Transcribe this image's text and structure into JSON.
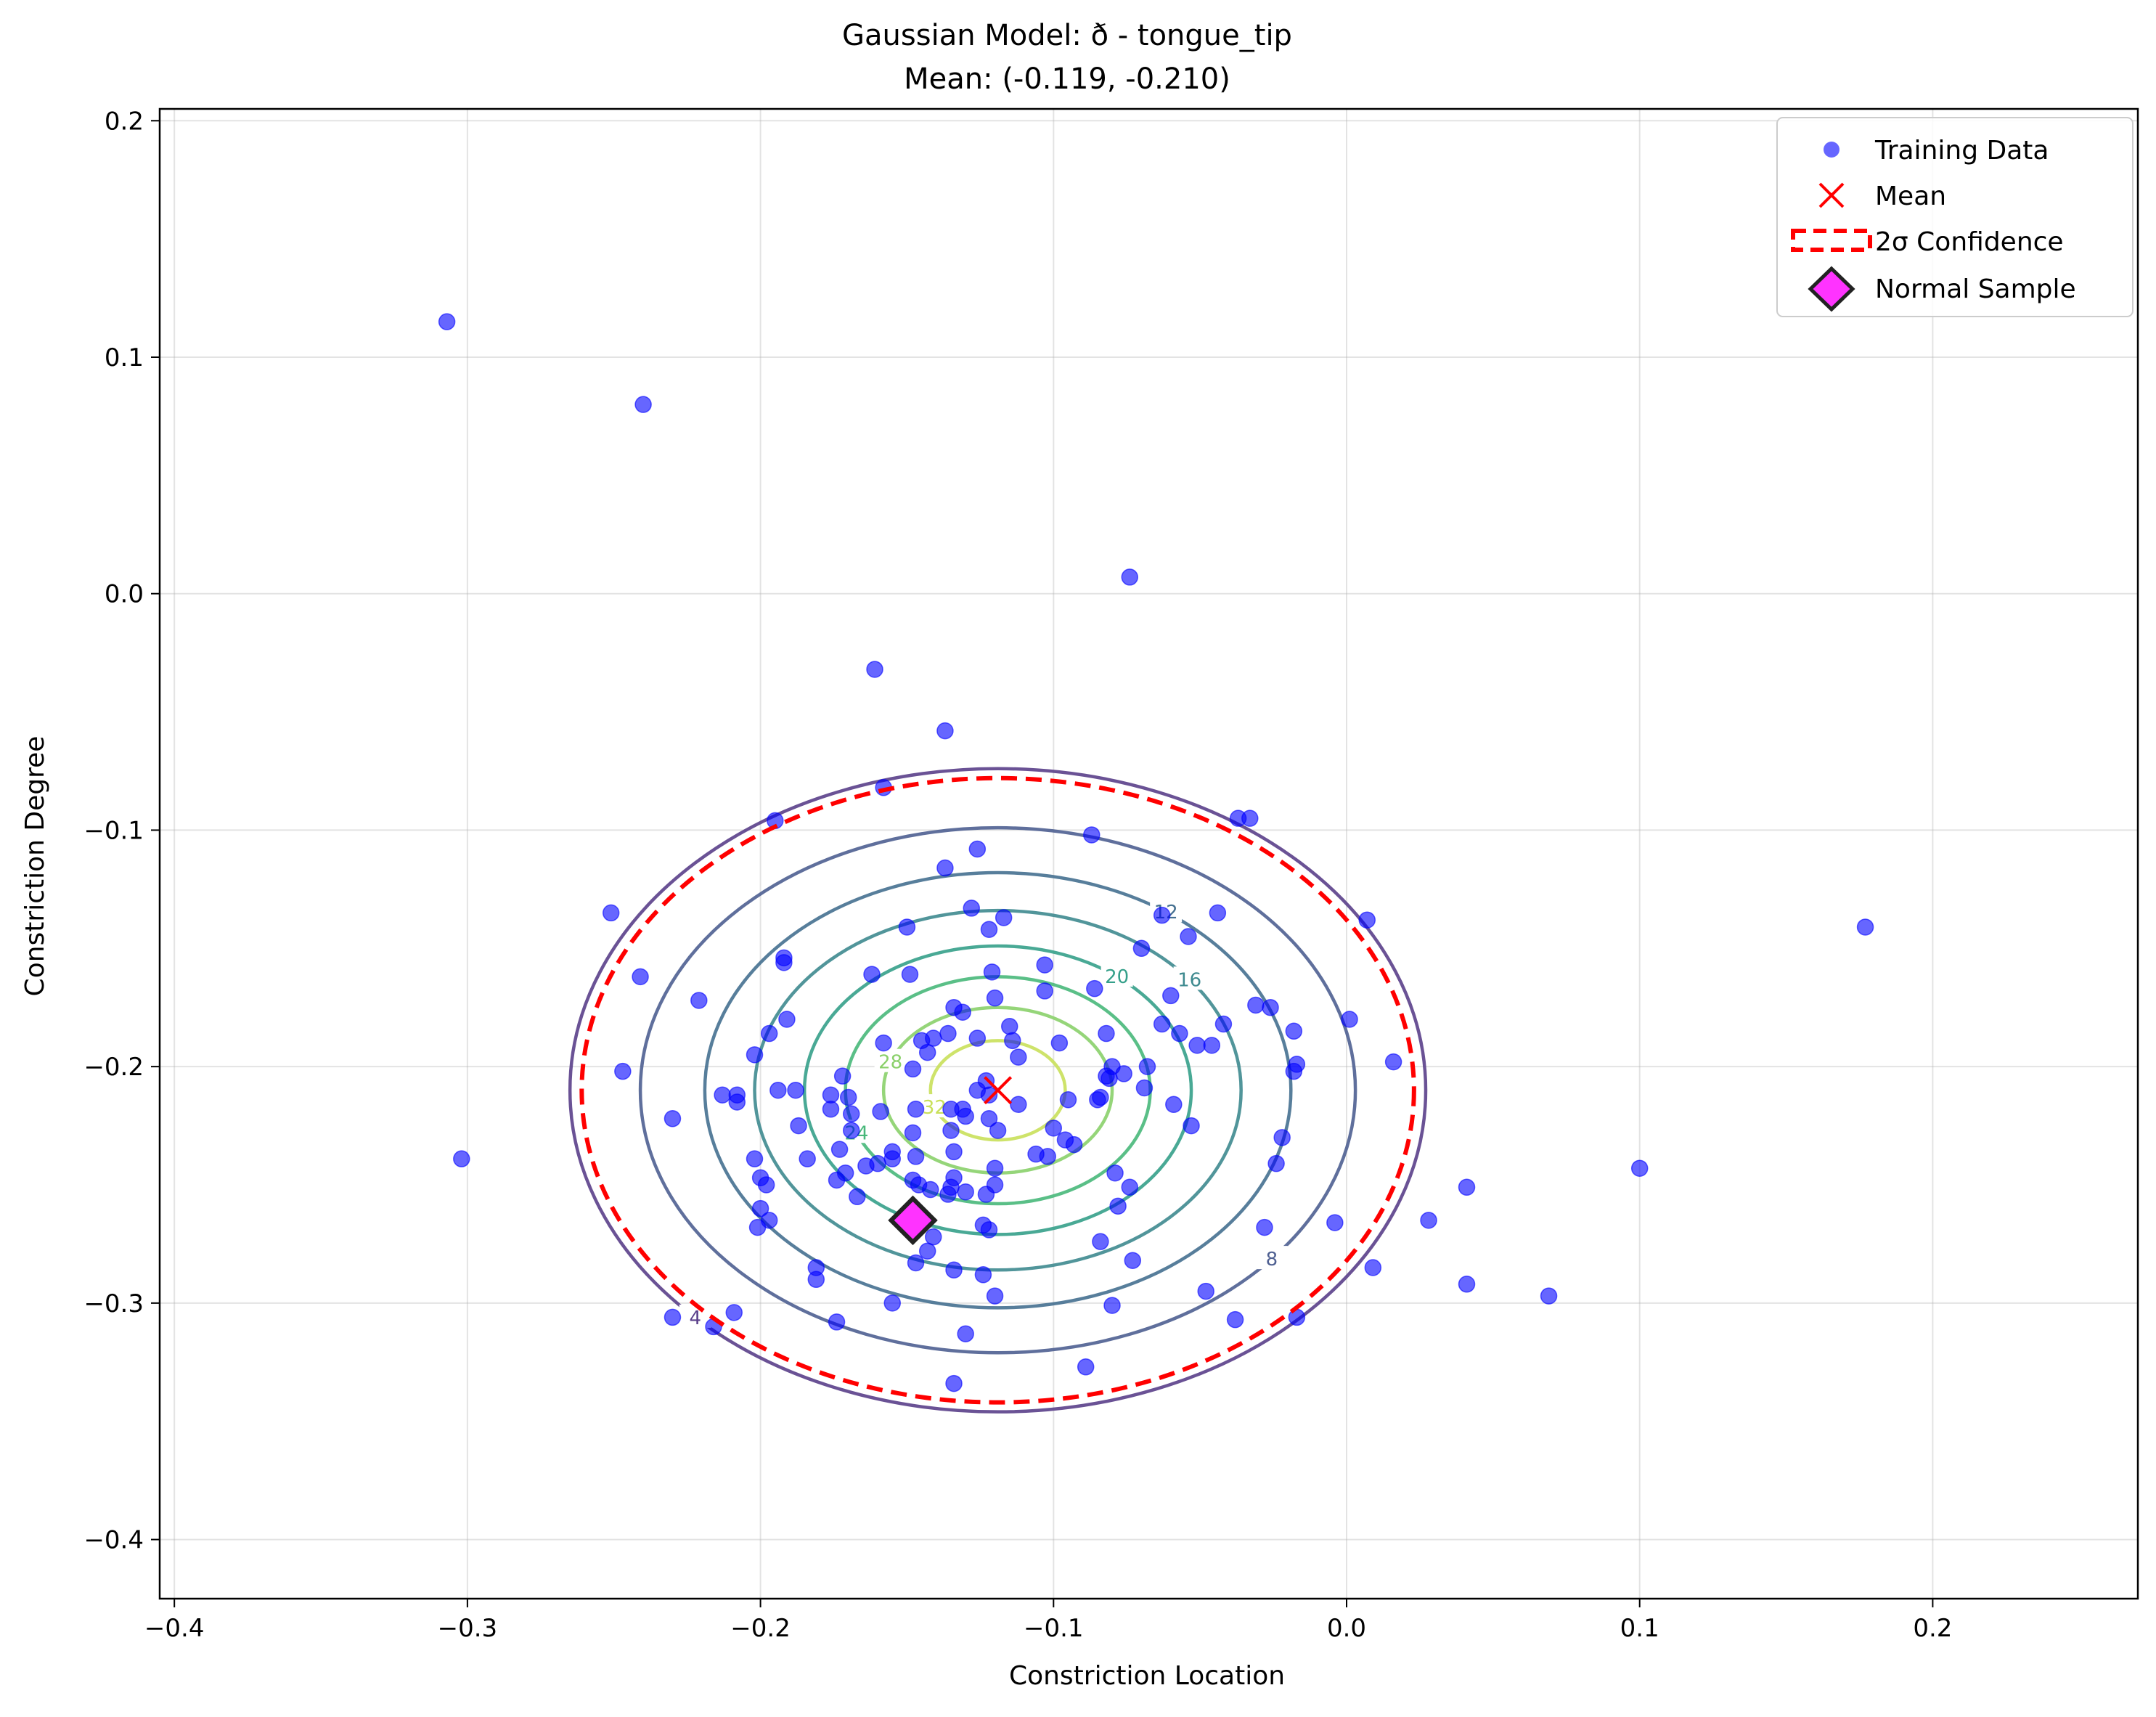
{
  "chart_data": {
    "type": "scatter",
    "title": "Gaussian Model: ð - tongue_tip",
    "subtitle": "Mean: (-0.119, -0.210)",
    "xlabel": "Constriction Location",
    "ylabel": "Constriction Degree",
    "xlim": [
      -0.405,
      0.27
    ],
    "ylim": [
      -0.425,
      0.205
    ],
    "grid": true,
    "legend_position": "top-right",
    "x_ticks": [
      {
        "value": -0.4,
        "label": "−0.4"
      },
      {
        "value": -0.3,
        "label": "−0.3"
      },
      {
        "value": -0.2,
        "label": "−0.2"
      },
      {
        "value": -0.1,
        "label": "−0.1"
      },
      {
        "value": 0.0,
        "label": "0.0"
      },
      {
        "value": 0.1,
        "label": "0.1"
      },
      {
        "value": 0.2,
        "label": "0.2"
      }
    ],
    "y_ticks": [
      {
        "value": 0.2,
        "label": "0.2"
      },
      {
        "value": 0.1,
        "label": "0.1"
      },
      {
        "value": 0.0,
        "label": "0.0"
      },
      {
        "value": -0.1,
        "label": "−0.1"
      },
      {
        "value": -0.2,
        "label": "−0.2"
      },
      {
        "value": -0.3,
        "label": "−0.3"
      },
      {
        "value": -0.4,
        "label": "−0.4"
      }
    ],
    "colors": {
      "training": "#0000ff",
      "mean": "#ff0000",
      "confidence": "#ff0000",
      "sample_fill": "#ff33ff",
      "sample_edge": "#222222"
    },
    "legend": [
      {
        "key": "training",
        "label": "Training Data"
      },
      {
        "key": "mean",
        "label": "Mean"
      },
      {
        "key": "confidence",
        "label": "2σ Confidence"
      },
      {
        "key": "sample",
        "label": "Normal Sample"
      }
    ],
    "mean": [
      -0.119,
      -0.21
    ],
    "normal_sample": [
      -0.148,
      -0.265
    ],
    "confidence_ellipse": {
      "center": [
        -0.119,
        -0.21
      ],
      "half_width_x": 0.142,
      "half_height_y": 0.132
    },
    "contours": [
      {
        "level": 4,
        "label": "4",
        "rx": 0.146,
        "ry": 0.136,
        "color": "#5a3f8a"
      },
      {
        "level": 8,
        "label": "8",
        "rx": 0.122,
        "ry": 0.111,
        "color": "#4e5f91"
      },
      {
        "level": 12,
        "label": "12",
        "rx": 0.1,
        "ry": 0.092,
        "color": "#457090"
      },
      {
        "level": 16,
        "label": "16",
        "rx": 0.083,
        "ry": 0.076,
        "color": "#3e8a8f"
      },
      {
        "level": 20,
        "label": "20",
        "rx": 0.066,
        "ry": 0.061,
        "color": "#35a08a"
      },
      {
        "level": 24,
        "label": "24",
        "rx": 0.052,
        "ry": 0.048,
        "color": "#48b87a"
      },
      {
        "level": 28,
        "label": "28",
        "rx": 0.039,
        "ry": 0.035,
        "color": "#8ad06a"
      },
      {
        "level": 32,
        "label": "32",
        "rx": 0.023,
        "ry": 0.021,
        "color": "#c9e05a"
      }
    ],
    "training_data": [
      [
        -0.307,
        0.115
      ],
      [
        -0.24,
        0.08
      ],
      [
        -0.074,
        0.007
      ],
      [
        -0.161,
        -0.032
      ],
      [
        -0.137,
        -0.058
      ],
      [
        -0.158,
        -0.082
      ],
      [
        -0.195,
        -0.096
      ],
      [
        -0.037,
        -0.095
      ],
      [
        -0.033,
        -0.095
      ],
      [
        -0.087,
        -0.102
      ],
      [
        -0.126,
        -0.108
      ],
      [
        -0.137,
        -0.116
      ],
      [
        -0.251,
        -0.135
      ],
      [
        -0.063,
        -0.136
      ],
      [
        -0.044,
        -0.135
      ],
      [
        -0.128,
        -0.133
      ],
      [
        -0.117,
        -0.137
      ],
      [
        0.007,
        -0.138
      ],
      [
        0.177,
        -0.141
      ],
      [
        -0.15,
        -0.141
      ],
      [
        -0.054,
        -0.145
      ],
      [
        -0.122,
        -0.142
      ],
      [
        -0.07,
        -0.15
      ],
      [
        -0.192,
        -0.154
      ],
      [
        -0.192,
        -0.156
      ],
      [
        -0.103,
        -0.157
      ],
      [
        -0.241,
        -0.162
      ],
      [
        -0.162,
        -0.161
      ],
      [
        -0.149,
        -0.161
      ],
      [
        -0.121,
        -0.16
      ],
      [
        -0.06,
        -0.17
      ],
      [
        -0.221,
        -0.172
      ],
      [
        -0.086,
        -0.167
      ],
      [
        -0.103,
        -0.168
      ],
      [
        -0.12,
        -0.171
      ],
      [
        -0.031,
        -0.174
      ],
      [
        -0.026,
        -0.175
      ],
      [
        -0.134,
        -0.175
      ],
      [
        -0.131,
        -0.177
      ],
      [
        0.001,
        -0.18
      ],
      [
        -0.191,
        -0.18
      ],
      [
        -0.063,
        -0.182
      ],
      [
        -0.042,
        -0.182
      ],
      [
        -0.115,
        -0.183
      ],
      [
        -0.018,
        -0.185
      ],
      [
        -0.197,
        -0.186
      ],
      [
        -0.136,
        -0.186
      ],
      [
        -0.141,
        -0.188
      ],
      [
        -0.082,
        -0.186
      ],
      [
        -0.057,
        -0.186
      ],
      [
        -0.114,
        -0.189
      ],
      [
        -0.098,
        -0.19
      ],
      [
        -0.145,
        -0.189
      ],
      [
        -0.051,
        -0.191
      ],
      [
        -0.046,
        -0.191
      ],
      [
        -0.158,
        -0.19
      ],
      [
        -0.126,
        -0.188
      ],
      [
        -0.143,
        -0.194
      ],
      [
        -0.202,
        -0.195
      ],
      [
        -0.017,
        -0.199
      ],
      [
        -0.112,
        -0.196
      ],
      [
        -0.08,
        -0.2
      ],
      [
        -0.068,
        -0.2
      ],
      [
        0.016,
        -0.198
      ],
      [
        -0.018,
        -0.202
      ],
      [
        -0.247,
        -0.202
      ],
      [
        -0.148,
        -0.201
      ],
      [
        -0.172,
        -0.204
      ],
      [
        -0.082,
        -0.204
      ],
      [
        -0.076,
        -0.203
      ],
      [
        -0.123,
        -0.206
      ],
      [
        -0.081,
        -0.205
      ],
      [
        -0.194,
        -0.21
      ],
      [
        -0.188,
        -0.21
      ],
      [
        -0.069,
        -0.209
      ],
      [
        -0.122,
        -0.212
      ],
      [
        -0.126,
        -0.21
      ],
      [
        -0.213,
        -0.212
      ],
      [
        -0.084,
        -0.213
      ],
      [
        -0.085,
        -0.214
      ],
      [
        -0.176,
        -0.212
      ],
      [
        -0.208,
        -0.212
      ],
      [
        -0.208,
        -0.215
      ],
      [
        -0.17,
        -0.213
      ],
      [
        -0.095,
        -0.214
      ],
      [
        -0.112,
        -0.216
      ],
      [
        -0.059,
        -0.216
      ],
      [
        -0.147,
        -0.218
      ],
      [
        -0.135,
        -0.218
      ],
      [
        -0.131,
        -0.218
      ],
      [
        -0.176,
        -0.218
      ],
      [
        -0.169,
        -0.22
      ],
      [
        -0.159,
        -0.219
      ],
      [
        -0.13,
        -0.221
      ],
      [
        -0.122,
        -0.222
      ],
      [
        -0.23,
        -0.222
      ],
      [
        -0.187,
        -0.225
      ],
      [
        -0.053,
        -0.225
      ],
      [
        -0.119,
        -0.227
      ],
      [
        -0.1,
        -0.226
      ],
      [
        -0.135,
        -0.227
      ],
      [
        -0.148,
        -0.228
      ],
      [
        -0.169,
        -0.227
      ],
      [
        -0.022,
        -0.23
      ],
      [
        -0.096,
        -0.231
      ],
      [
        -0.093,
        -0.233
      ],
      [
        -0.106,
        -0.237
      ],
      [
        -0.134,
        -0.236
      ],
      [
        -0.155,
        -0.236
      ],
      [
        -0.173,
        -0.235
      ],
      [
        -0.147,
        -0.238
      ],
      [
        -0.202,
        -0.239
      ],
      [
        -0.155,
        -0.239
      ],
      [
        -0.102,
        -0.238
      ],
      [
        -0.024,
        -0.241
      ],
      [
        -0.164,
        -0.242
      ],
      [
        -0.16,
        -0.241
      ],
      [
        -0.184,
        -0.239
      ],
      [
        -0.12,
        -0.243
      ],
      [
        -0.171,
        -0.245
      ],
      [
        -0.134,
        -0.247
      ],
      [
        -0.174,
        -0.248
      ],
      [
        -0.2,
        -0.247
      ],
      [
        -0.079,
        -0.245
      ],
      [
        -0.198,
        -0.25
      ],
      [
        -0.12,
        -0.25
      ],
      [
        -0.148,
        -0.248
      ],
      [
        -0.146,
        -0.25
      ],
      [
        0.1,
        -0.243
      ],
      [
        -0.135,
        -0.251
      ],
      [
        -0.074,
        -0.251
      ],
      [
        0.041,
        -0.251
      ],
      [
        -0.142,
        -0.252
      ],
      [
        -0.13,
        -0.253
      ],
      [
        -0.136,
        -0.254
      ],
      [
        -0.167,
        -0.255
      ],
      [
        -0.123,
        -0.254
      ],
      [
        -0.078,
        -0.259
      ],
      [
        -0.2,
        -0.26
      ],
      [
        -0.197,
        -0.265
      ],
      [
        0.028,
        -0.265
      ],
      [
        -0.124,
        -0.267
      ],
      [
        -0.004,
        -0.266
      ],
      [
        -0.145,
        -0.264
      ],
      [
        -0.028,
        -0.268
      ],
      [
        -0.201,
        -0.268
      ],
      [
        -0.122,
        -0.269
      ],
      [
        -0.141,
        -0.272
      ],
      [
        -0.084,
        -0.274
      ],
      [
        -0.143,
        -0.278
      ],
      [
        -0.147,
        -0.283
      ],
      [
        -0.073,
        -0.282
      ],
      [
        0.009,
        -0.285
      ],
      [
        -0.181,
        -0.285
      ],
      [
        -0.134,
        -0.286
      ],
      [
        -0.124,
        -0.288
      ],
      [
        -0.181,
        -0.29
      ],
      [
        0.041,
        -0.292
      ],
      [
        -0.048,
        -0.295
      ],
      [
        0.069,
        -0.297
      ],
      [
        -0.12,
        -0.297
      ],
      [
        -0.155,
        -0.3
      ],
      [
        -0.08,
        -0.301
      ],
      [
        -0.209,
        -0.304
      ],
      [
        -0.23,
        -0.306
      ],
      [
        -0.038,
        -0.307
      ],
      [
        -0.017,
        -0.306
      ],
      [
        -0.216,
        -0.31
      ],
      [
        -0.174,
        -0.308
      ],
      [
        -0.13,
        -0.313
      ],
      [
        -0.089,
        -0.327
      ],
      [
        -0.134,
        -0.334
      ],
      [
        -0.302,
        -0.239
      ]
    ]
  }
}
